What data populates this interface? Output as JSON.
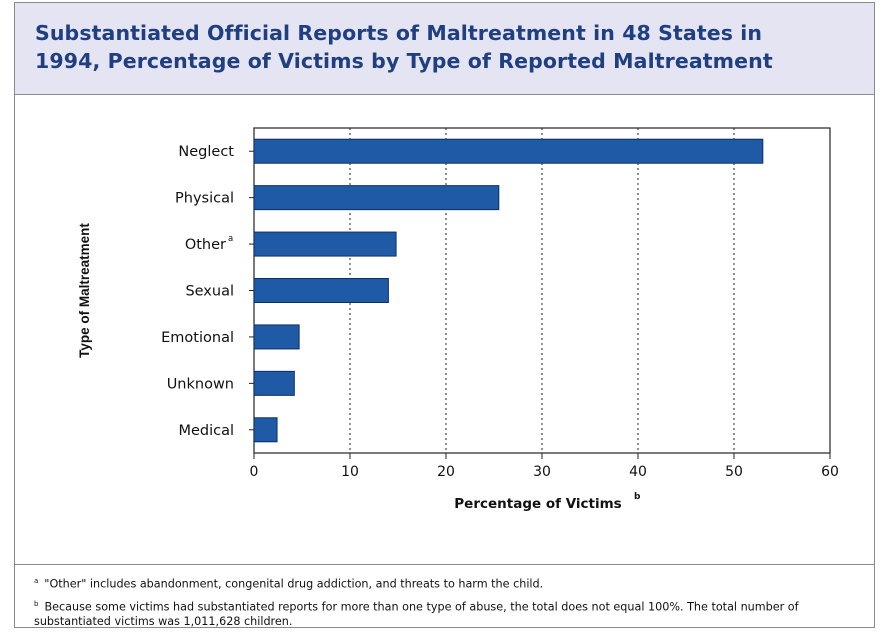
{
  "title": {
    "line1": "Substantiated Official Reports of Maltreatment in 48 States in",
    "line2": "1994, Percentage of Victims by Type of Reported Maltreatment"
  },
  "colors": {
    "bar": "#1f5aa6",
    "bar_edge": "#0b2f66",
    "title_bg": "#e4e4f2",
    "title_text": "#1f3f80"
  },
  "chart_data": {
    "type": "bar",
    "orientation": "horizontal",
    "categories": [
      "Neglect",
      "Physical",
      "Other",
      "Sexual",
      "Emotional",
      "Unknown",
      "Medical"
    ],
    "category_superscripts": [
      "",
      "",
      "a",
      "",
      "",
      "",
      ""
    ],
    "values": [
      53,
      25.5,
      14.8,
      14,
      4.7,
      4.2,
      2.4
    ],
    "xlabel": "Percentage of Victims",
    "xlabel_superscript": "b",
    "ylabel": "Type of Maltreatment",
    "xlim": [
      0,
      60
    ],
    "xticks": [
      0,
      10,
      20,
      30,
      40,
      50,
      60
    ],
    "grid": "vertical dotted"
  },
  "footnotes": {
    "a_mark": "a",
    "a_text": "\"Other\" includes abandonment, congenital drug addiction, and threats to harm the child.",
    "b_mark": "b",
    "b_text": "Because some victims had substantiated reports for more than one type of abuse, the total does not equal 100%. The total number of substantiated victims was 1,011,628 children."
  }
}
